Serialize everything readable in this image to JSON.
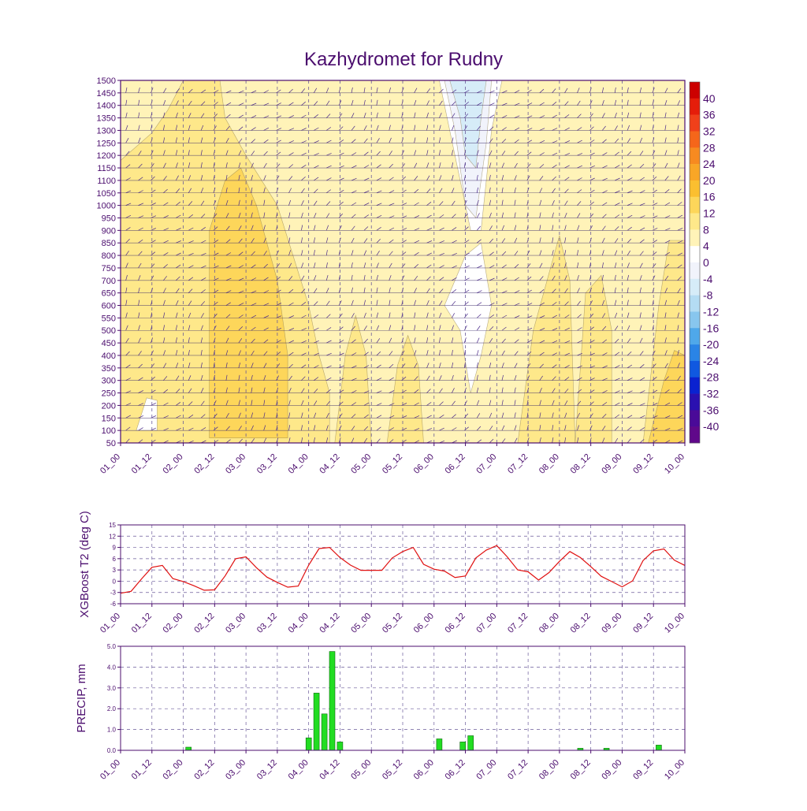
{
  "title": "Kazhydromet for Rudny",
  "time_ticks": [
    "01_00",
    "01_12",
    "02_00",
    "02_12",
    "03_00",
    "03_12",
    "04_00",
    "04_12",
    "05_00",
    "05_12",
    "06_00",
    "06_12",
    "07_00",
    "07_12",
    "08_00",
    "08_12",
    "09_00",
    "09_12",
    "10_00"
  ],
  "colors": {
    "axis": "#4b0d6e",
    "t2_line": "#e01010",
    "precip_bar": "#22dd22",
    "grid": "#6a5a9a"
  },
  "chart_data": [
    {
      "type": "heatmap",
      "name": "",
      "ylabel": "",
      "y_ticks": [
        50,
        100,
        150,
        200,
        250,
        300,
        350,
        400,
        450,
        500,
        550,
        600,
        650,
        700,
        750,
        800,
        850,
        900,
        950,
        1000,
        1050,
        1100,
        1150,
        1200,
        1250,
        1300,
        1350,
        1400,
        1450,
        1500
      ],
      "ylim": [
        50,
        1500
      ],
      "xlim": [
        0,
        108
      ],
      "colorbar": {
        "labels": [
          "40",
          "36",
          "32",
          "28",
          "24",
          "20",
          "16",
          "12",
          "8",
          "4",
          "0",
          "-4",
          "-8",
          "-12",
          "-16",
          "-20",
          "-24",
          "-28",
          "-32",
          "-36",
          "-40"
        ],
        "bands": [
          {
            "low": 40,
            "high": 44,
            "color": "#cc0000"
          },
          {
            "low": 36,
            "high": 40,
            "color": "#e51d0a"
          },
          {
            "low": 32,
            "high": 36,
            "color": "#f0401a"
          },
          {
            "low": 28,
            "high": 32,
            "color": "#f5661a"
          },
          {
            "low": 24,
            "high": 28,
            "color": "#f78a20"
          },
          {
            "low": 20,
            "high": 24,
            "color": "#f9a626"
          },
          {
            "low": 16,
            "high": 20,
            "color": "#fbbf30"
          },
          {
            "low": 12,
            "high": 16,
            "color": "#fdd65a"
          },
          {
            "low": 8,
            "high": 12,
            "color": "#fee88a"
          },
          {
            "low": 4,
            "high": 8,
            "color": "#fff3b8"
          },
          {
            "low": 0,
            "high": 4,
            "color": "#ffffff"
          },
          {
            "low": -4,
            "high": 0,
            "color": "#f1f3fb"
          },
          {
            "low": -8,
            "high": -4,
            "color": "#d6ecf8"
          },
          {
            "low": -12,
            "high": -8,
            "color": "#b4dcf3"
          },
          {
            "low": -16,
            "high": -12,
            "color": "#88c6ee"
          },
          {
            "low": -20,
            "high": -16,
            "color": "#4fa8ea"
          },
          {
            "low": -24,
            "high": -20,
            "color": "#2a84e6"
          },
          {
            "low": -28,
            "high": -24,
            "color": "#1058e0"
          },
          {
            "low": -32,
            "high": -28,
            "color": "#0a22d0"
          },
          {
            "low": -36,
            "high": -32,
            "color": "#2a10b0"
          },
          {
            "low": -40,
            "high": -36,
            "color": "#4a0a98"
          },
          {
            "low": -44,
            "high": -40,
            "color": "#60088a"
          }
        ]
      },
      "regions": [
        {
          "value_band": "8-12",
          "points": [
            [
              0,
              1180
            ],
            [
              6,
              1290
            ],
            [
              9,
              1380
            ],
            [
              12,
              1500
            ],
            [
              19,
              1500
            ],
            [
              20,
              1350
            ],
            [
              24,
              1200
            ],
            [
              30,
              1000
            ],
            [
              33,
              800
            ],
            [
              36,
              600
            ],
            [
              38,
              400
            ],
            [
              40,
              250
            ],
            [
              40,
              50
            ],
            [
              0,
              50
            ]
          ]
        },
        {
          "value_band": "8-12",
          "points": [
            [
              41,
              50
            ],
            [
              43,
              400
            ],
            [
              45,
              560
            ],
            [
              47,
              400
            ],
            [
              48,
              50
            ]
          ]
        },
        {
          "value_band": "8-12",
          "points": [
            [
              51,
              50
            ],
            [
              53,
              360
            ],
            [
              55,
              480
            ],
            [
              57,
              360
            ],
            [
              58,
              50
            ]
          ]
        },
        {
          "value_band": "8-12",
          "points": [
            [
              76,
              50
            ],
            [
              79,
              500
            ],
            [
              84,
              880
            ],
            [
              86,
              700
            ],
            [
              87,
              50
            ]
          ]
        },
        {
          "value_band": "8-12",
          "points": [
            [
              87,
              50
            ],
            [
              89,
              650
            ],
            [
              92,
              720
            ],
            [
              94,
              500
            ],
            [
              94,
              50
            ]
          ]
        },
        {
          "value_band": "8-12",
          "points": [
            [
              100,
              50
            ],
            [
              103,
              600
            ],
            [
              105,
              860
            ],
            [
              108,
              860
            ],
            [
              108,
              50
            ]
          ]
        },
        {
          "value_band": "12-16",
          "points": [
            [
              17,
              70
            ],
            [
              17,
              900
            ],
            [
              20,
              1100
            ],
            [
              23,
              1150
            ],
            [
              26,
              1000
            ],
            [
              30,
              700
            ],
            [
              32,
              400
            ],
            [
              32,
              70
            ]
          ]
        },
        {
          "value_band": "12-16",
          "points": [
            [
              101,
              50
            ],
            [
              104,
              300
            ],
            [
              106,
              420
            ],
            [
              108,
              400
            ],
            [
              108,
              50
            ]
          ]
        },
        {
          "value_band": "0-4",
          "points": [
            [
              61,
              1500
            ],
            [
              64,
              1200
            ],
            [
              67,
              900
            ],
            [
              69,
              900
            ],
            [
              71,
              1300
            ],
            [
              73,
              1500
            ]
          ]
        },
        {
          "value_band": "0-4",
          "points": [
            [
              62,
              600
            ],
            [
              65,
              500
            ],
            [
              67,
              250
            ],
            [
              69,
              400
            ],
            [
              71,
              600
            ],
            [
              69,
              850
            ],
            [
              66,
              800
            ]
          ]
        },
        {
          "value_band": "0-4",
          "points": [
            [
              3,
              100
            ],
            [
              5,
              230
            ],
            [
              7,
              220
            ],
            [
              7,
              100
            ]
          ]
        },
        {
          "value_band": "-4-0",
          "points": [
            [
              62,
              1500
            ],
            [
              64,
              1300
            ],
            [
              66,
              1000
            ],
            [
              68,
              950
            ],
            [
              70,
              1250
            ],
            [
              71,
              1500
            ]
          ]
        },
        {
          "value_band": "-8--4",
          "points": [
            [
              63,
              1500
            ],
            [
              65,
              1350
            ],
            [
              66,
              1200
            ],
            [
              68,
              1150
            ],
            [
              69,
              1350
            ],
            [
              70,
              1500
            ]
          ]
        }
      ],
      "wind_barbs_marker": "∞"
    },
    {
      "type": "line",
      "name": "",
      "ylabel": "XGBoost T2 (deg C)",
      "y_ticks": [
        "15",
        "12",
        "9",
        "6",
        "3",
        "0",
        "-3",
        "-6"
      ],
      "ylim": [
        -6,
        15
      ],
      "xlim": [
        0,
        108
      ],
      "x": [
        0,
        2,
        4,
        6,
        8,
        10,
        12,
        14,
        16,
        18,
        20,
        22,
        24,
        26,
        28,
        30,
        32,
        34,
        36,
        38,
        40,
        42,
        44,
        46,
        48,
        50,
        52,
        54,
        56,
        58,
        60,
        62,
        64,
        66,
        68,
        70,
        72,
        74,
        76,
        78,
        80,
        82,
        84,
        86,
        88,
        90,
        92,
        94,
        96,
        98,
        100,
        102,
        104,
        106,
        108
      ],
      "values": [
        -3.2,
        -2.7,
        0.6,
        3.7,
        4.2,
        0.7,
        -0.1,
        -1.2,
        -2.4,
        -2.3,
        1.4,
        6,
        6.5,
        3.6,
        1.1,
        -0.3,
        -1.6,
        -1.3,
        4.3,
        8.7,
        9,
        6.3,
        4.3,
        2.9,
        2.9,
        2.9,
        6.2,
        7.9,
        9,
        4.5,
        3.2,
        2.7,
        1,
        1.4,
        6.2,
        8.3,
        9.5,
        6.5,
        3,
        2.5,
        0.3,
        2.3,
        5.3,
        7.9,
        6.3,
        3.9,
        1.3,
        -0.1,
        -1.5,
        0.1,
        5.5,
        8.1,
        8.6,
        5.6,
        4.2
      ]
    },
    {
      "type": "bar",
      "name": "",
      "ylabel": "PRECIP, mm",
      "y_ticks": [
        "5.0",
        "4.0",
        "3.0",
        "2.0",
        "1.0",
        "0.0"
      ],
      "ylim": [
        0,
        5
      ],
      "xlim": [
        0,
        108
      ],
      "bars": [
        {
          "x": 13,
          "value": 0.15
        },
        {
          "x": 36,
          "value": 0.6
        },
        {
          "x": 37.5,
          "value": 2.75
        },
        {
          "x": 39,
          "value": 1.75
        },
        {
          "x": 40.5,
          "value": 4.75
        },
        {
          "x": 42,
          "value": 0.4
        },
        {
          "x": 61,
          "value": 0.55
        },
        {
          "x": 65.5,
          "value": 0.4
        },
        {
          "x": 67,
          "value": 0.7
        },
        {
          "x": 88,
          "value": 0.1
        },
        {
          "x": 93,
          "value": 0.1
        },
        {
          "x": 103,
          "value": 0.25
        }
      ]
    }
  ]
}
